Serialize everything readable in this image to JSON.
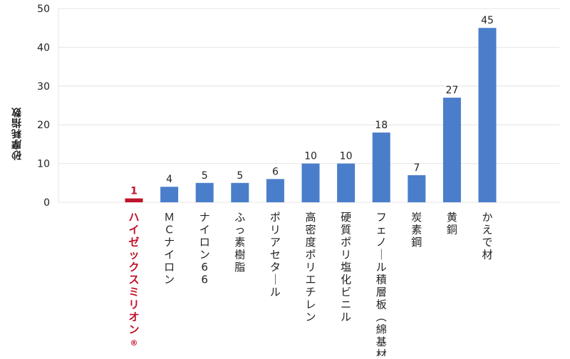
{
  "chart_data": {
    "type": "bar",
    "ylabel": "砂摩耗指数",
    "ylim": [
      0,
      50
    ],
    "yticks": [
      0,
      10,
      20,
      30,
      40,
      50
    ],
    "grid": true,
    "categories": [
      "ハイゼックスミリオン®",
      "ＭＣナイロン",
      "ナイロン66",
      "ふっ素樹脂",
      "ポリアセタール",
      "高密度ポリエチレン",
      "硬質ポリ塩化ビニル",
      "フェノール積層板（綿基材）",
      "炭素鋼",
      "黄銅",
      "かえで材"
    ],
    "values": [
      1,
      4,
      5,
      5,
      6,
      10,
      10,
      18,
      7,
      27,
      45
    ],
    "highlight_index": 0,
    "colors": {
      "bar": "#4a7ecb",
      "highlight": "#c0122a",
      "grid": "#e4e4e4",
      "axis_text": "#222222"
    }
  }
}
